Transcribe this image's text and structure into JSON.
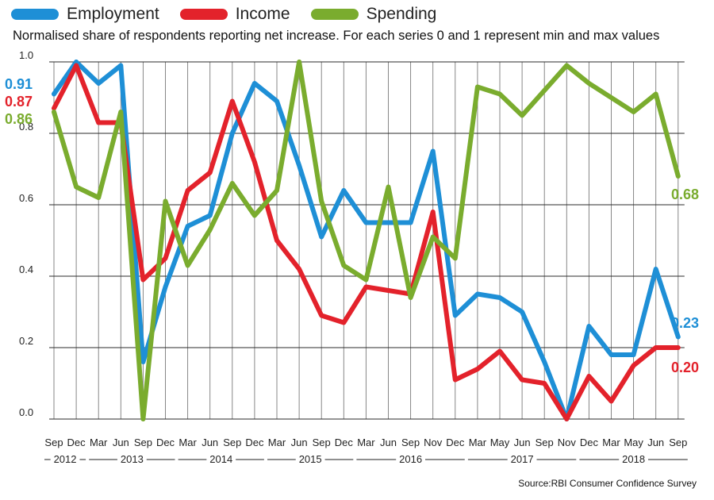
{
  "legend": {
    "items": [
      {
        "label": "Employment",
        "color": "#1e8fd6"
      },
      {
        "label": "Income",
        "color": "#e3222b"
      },
      {
        "label": "Spending",
        "color": "#7aac2e"
      }
    ]
  },
  "subtitle": "Normalised share of respondents reporting net increase. For each series 0 and 1 represent min and max values",
  "source": "Source:RBI Consumer Confidence Survey",
  "chart_data": {
    "type": "line",
    "title": "",
    "xlabel": "",
    "ylabel": "",
    "ylim": [
      0,
      1
    ],
    "yticks": [
      "0.0",
      "0.2",
      "0.4",
      "0.6",
      "0.8",
      "1.0"
    ],
    "grid": true,
    "legend_position": "top",
    "categories": [
      "Sep",
      "Dec",
      "Mar",
      "Jun",
      "Sep",
      "Dec",
      "Mar",
      "Jun",
      "Sep",
      "Dec",
      "Mar",
      "Jun",
      "Sep",
      "Dec",
      "Mar",
      "Jun",
      "Sep",
      "Nov",
      "Dec",
      "Mar",
      "May",
      "Jun",
      "Sep",
      "Nov",
      "Dec",
      "Mar",
      "May",
      "Jun",
      "Sep"
    ],
    "years": [
      {
        "label": "2012",
        "start": 0,
        "end": 1
      },
      {
        "label": "2013",
        "start": 2,
        "end": 5
      },
      {
        "label": "2014",
        "start": 6,
        "end": 9
      },
      {
        "label": "2015",
        "start": 10,
        "end": 13
      },
      {
        "label": "2016",
        "start": 14,
        "end": 18
      },
      {
        "label": "2017",
        "start": 19,
        "end": 23
      },
      {
        "label": "2018",
        "start": 24,
        "end": 28
      }
    ],
    "series": [
      {
        "name": "Employment",
        "color": "#1e8fd6",
        "values": [
          0.91,
          1.0,
          0.94,
          0.99,
          0.16,
          0.37,
          0.54,
          0.57,
          0.8,
          0.94,
          0.89,
          0.71,
          0.51,
          0.64,
          0.55,
          0.55,
          0.55,
          0.75,
          0.29,
          0.35,
          0.34,
          0.3,
          0.16,
          0.0,
          0.26,
          0.18,
          0.18,
          0.42,
          0.23
        ]
      },
      {
        "name": "Income",
        "color": "#e3222b",
        "values": [
          0.87,
          0.99,
          0.83,
          0.83,
          0.39,
          0.45,
          0.64,
          0.69,
          0.89,
          0.72,
          0.5,
          0.42,
          0.29,
          0.27,
          0.37,
          0.36,
          0.35,
          0.58,
          0.11,
          0.14,
          0.19,
          0.11,
          0.1,
          0.0,
          0.12,
          0.05,
          0.15,
          0.2,
          0.2
        ]
      },
      {
        "name": "Spending",
        "color": "#7aac2e",
        "values": [
          0.86,
          0.65,
          0.62,
          0.86,
          0.0,
          0.61,
          0.43,
          0.53,
          0.66,
          0.57,
          0.64,
          1.0,
          0.61,
          0.43,
          0.39,
          0.65,
          0.34,
          0.51,
          0.45,
          0.93,
          0.91,
          0.85,
          0.92,
          0.99,
          0.94,
          0.9,
          0.86,
          0.91,
          0.68
        ]
      }
    ],
    "annotations": {
      "start": [
        {
          "text": "0.91",
          "series": 0
        },
        {
          "text": "0.87",
          "series": 1
        },
        {
          "text": "0.86",
          "series": 2
        }
      ],
      "end": [
        {
          "text": "0.68",
          "series": 2
        },
        {
          "text": "0.23",
          "series": 0
        },
        {
          "text": "0.20",
          "series": 1
        }
      ]
    }
  }
}
